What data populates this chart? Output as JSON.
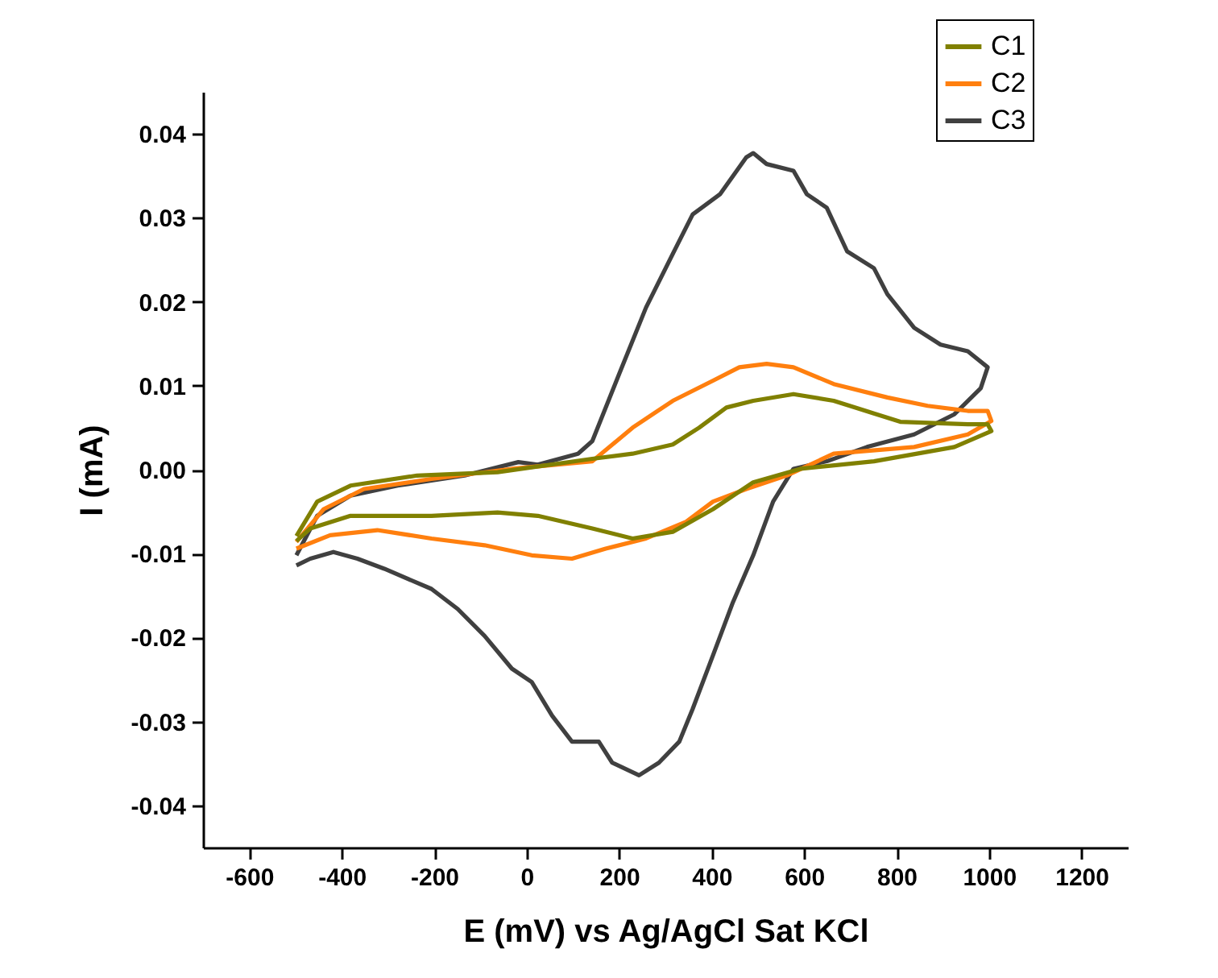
{
  "chart_data": {
    "type": "line",
    "xlabel": "E (mV) vs Ag/AgCl Sat KCl",
    "ylabel": "I (mA)",
    "xlim": [
      -700,
      1300
    ],
    "xticks": [
      -600,
      -400,
      -200,
      0,
      200,
      400,
      600,
      800,
      1000,
      1200
    ],
    "ylim": [
      -0.045,
      0.045
    ],
    "yticks": [
      -0.04,
      -0.03,
      -0.02,
      -0.01,
      {
        "value": 0,
        "label": "0.00"
      },
      0.01,
      0.02,
      0.03,
      0.04
    ],
    "legend": "top right",
    "grid": false,
    "line_style": "solid",
    "marker": "none",
    "series": [
      {
        "name": "C1",
        "color": "#808000",
        "x": [
          -498,
          -453,
          -381,
          -237,
          -63,
          142,
          229,
          316,
          373,
          432,
          490,
          577,
          664,
          751,
          808,
          954,
          997,
          1005,
          925,
          751,
          592,
          490,
          403,
          316,
          229,
          142,
          24,
          -63,
          -206,
          -381,
          -468,
          -498
        ],
        "values": [
          -0.0079,
          -0.0038,
          -0.0019,
          -0.0007,
          -0.0003,
          0.0013,
          0.0019,
          0.003,
          0.005,
          0.0074,
          0.0082,
          0.009,
          0.0082,
          0.0067,
          0.0057,
          0.0054,
          0.0054,
          0.0046,
          0.0027,
          0.001,
          0.0001,
          -0.0015,
          -0.0047,
          -0.0074,
          -0.0082,
          -0.007,
          -0.0055,
          -0.0051,
          -0.0055,
          -0.0055,
          -0.007,
          -0.0085
        ]
      },
      {
        "name": "C2",
        "color": "#ff7f0e",
        "x": [
          -498,
          -439,
          -352,
          -206,
          -32,
          142,
          229,
          316,
          403,
          460,
          519,
          577,
          664,
          780,
          867,
          954,
          997,
          1005,
          954,
          838,
          664,
          562,
          475,
          403,
          345,
          258,
          171,
          98,
          11,
          -91,
          -206,
          -323,
          -425,
          -498
        ],
        "values": [
          -0.0086,
          -0.0047,
          -0.0023,
          -0.0011,
          0.0001,
          0.001,
          0.005,
          0.0082,
          0.0106,
          0.0122,
          0.0126,
          0.0122,
          0.0102,
          0.0086,
          0.0076,
          0.007,
          0.007,
          0.0058,
          0.0042,
          0.0027,
          0.0019,
          -0.0007,
          -0.0023,
          -0.0038,
          -0.0062,
          -0.0082,
          -0.0094,
          -0.0106,
          -0.0102,
          -0.009,
          -0.0082,
          -0.0072,
          -0.0078,
          -0.0094
        ]
      },
      {
        "name": "C3",
        "color": "#404040",
        "x": [
          -498,
          -453,
          -381,
          -279,
          -134,
          -18,
          24,
          111,
          142,
          200,
          258,
          316,
          359,
          418,
          475,
          490,
          519,
          577,
          606,
          649,
          693,
          751,
          780,
          838,
          895,
          954,
          997,
          982,
          925,
          838,
          736,
          649,
          577,
          533,
          490,
          446,
          403,
          359,
          330,
          286,
          243,
          185,
          156,
          98,
          55,
          11,
          -32,
          -91,
          -149,
          -206,
          -308,
          -366,
          -418,
          -468,
          -498
        ],
        "values": [
          -0.0102,
          -0.0055,
          -0.0031,
          -0.0019,
          -0.0007,
          0.0009,
          0.0006,
          0.0019,
          0.0034,
          0.0114,
          0.0193,
          0.0257,
          0.0304,
          0.0328,
          0.0372,
          0.0377,
          0.0364,
          0.0356,
          0.0328,
          0.0312,
          0.026,
          0.024,
          0.0209,
          0.0169,
          0.0149,
          0.0141,
          0.0122,
          0.0097,
          0.0066,
          0.0042,
          0.0027,
          0.001,
          0.0001,
          -0.0038,
          -0.0102,
          -0.0158,
          -0.0221,
          -0.0285,
          -0.0324,
          -0.0349,
          -0.0364,
          -0.0349,
          -0.0324,
          -0.0324,
          -0.0293,
          -0.0253,
          -0.0237,
          -0.0198,
          -0.0166,
          -0.0142,
          -0.0118,
          -0.0106,
          -0.0098,
          -0.0106,
          -0.0114
        ]
      }
    ]
  }
}
